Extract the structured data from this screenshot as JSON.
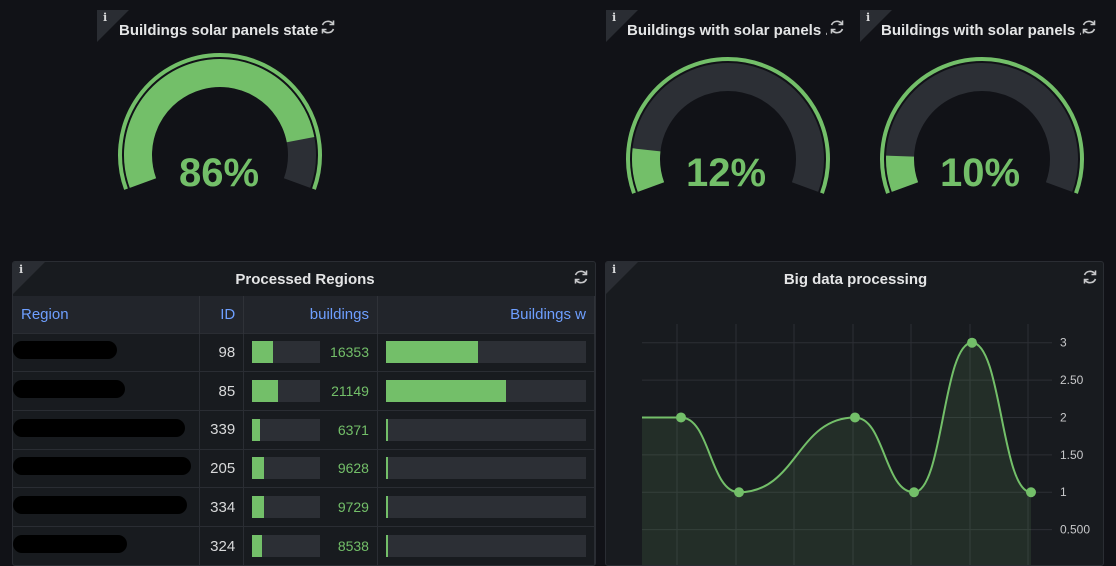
{
  "gauges": [
    {
      "title": "Buildings solar panels state...",
      "value_text": "86%",
      "value": 86
    },
    {
      "title": "Buildings with solar panels ...",
      "value_text": "12%",
      "value": 12
    },
    {
      "title": "Buildings with solar panels ...",
      "value_text": "10%",
      "value": 10
    }
  ],
  "regions_table": {
    "title": "Processed Regions",
    "columns": [
      "Region",
      "ID",
      "buildings",
      "Buildings w"
    ],
    "rows": [
      {
        "id": "98",
        "buildings": "16353",
        "buildings_fill": 0.3,
        "with_fill": 0.46
      },
      {
        "id": "85",
        "buildings": "21149",
        "buildings_fill": 0.38,
        "with_fill": 0.6
      },
      {
        "id": "339",
        "buildings": "6371",
        "buildings_fill": 0.11,
        "with_fill": 0.01
      },
      {
        "id": "205",
        "buildings": "9628",
        "buildings_fill": 0.17,
        "with_fill": 0.01
      },
      {
        "id": "334",
        "buildings": "9729",
        "buildings_fill": 0.17,
        "with_fill": 0.01
      },
      {
        "id": "324",
        "buildings": "8538",
        "buildings_fill": 0.15,
        "with_fill": 0.01
      }
    ]
  },
  "big_data": {
    "title": "Big data processing",
    "chart_data": {
      "type": "area",
      "x": [
        0,
        1,
        2,
        3,
        4,
        5,
        6
      ],
      "values": [
        2,
        2,
        1,
        2,
        1,
        3,
        1
      ],
      "ylim": [
        0,
        3.25
      ],
      "yticks": [
        "3",
        "2.50",
        "2",
        "1.50",
        "1",
        "0.500"
      ],
      "ytick_values": [
        3,
        2.5,
        2,
        1.5,
        1,
        0.5
      ],
      "color": "#73bf69"
    }
  },
  "colors": {
    "accent": "#73bf69",
    "link": "#6e9fff",
    "bg": "#111217"
  }
}
